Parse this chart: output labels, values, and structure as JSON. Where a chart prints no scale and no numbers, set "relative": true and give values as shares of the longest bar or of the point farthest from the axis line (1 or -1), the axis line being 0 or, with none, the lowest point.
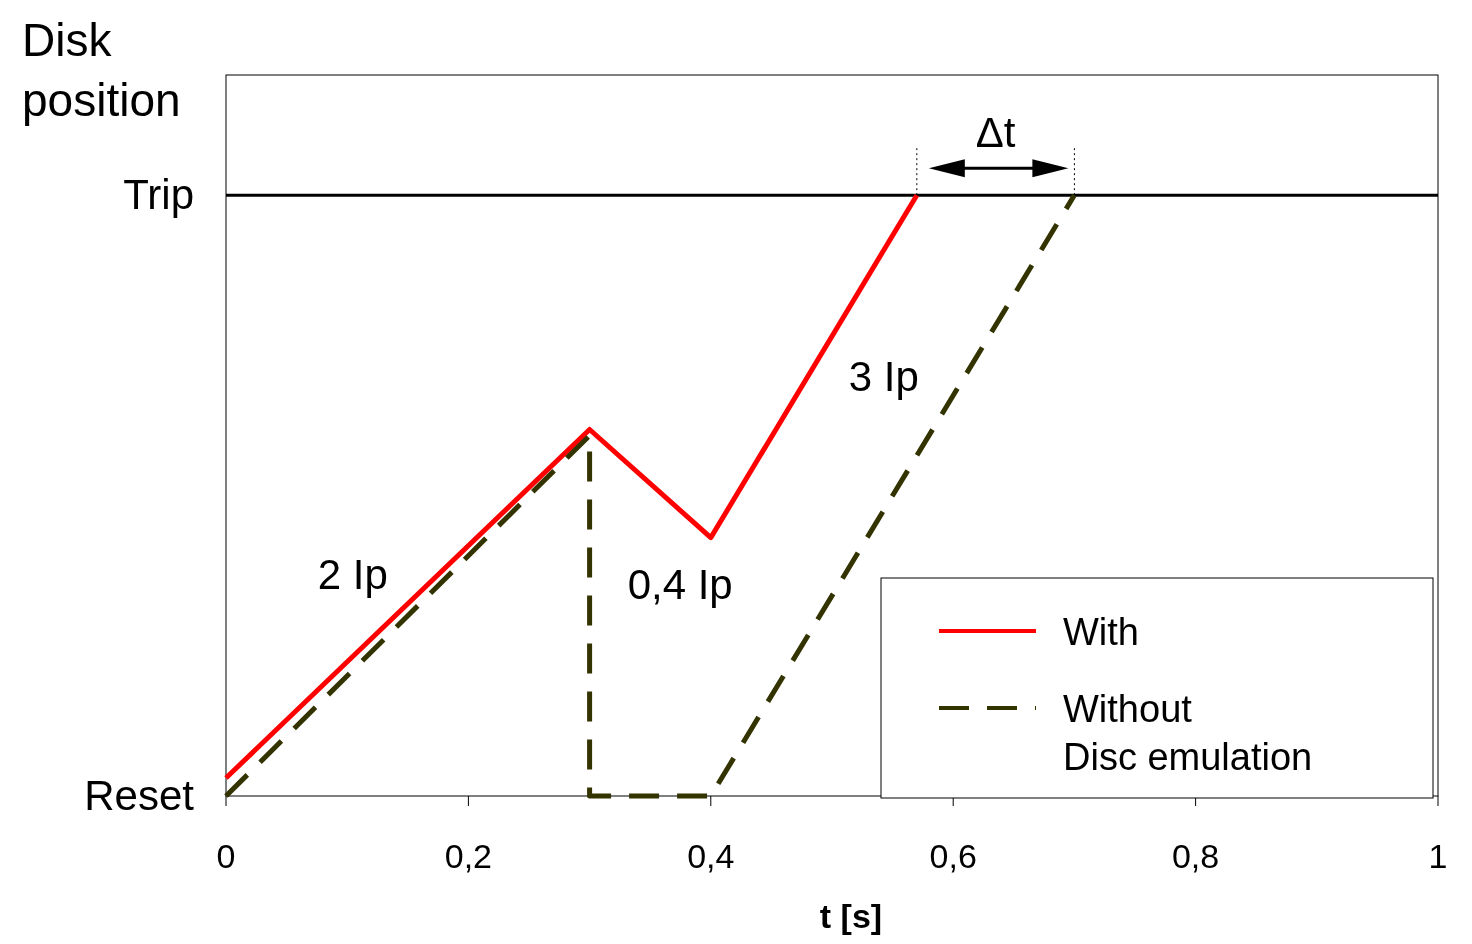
{
  "chart_data": {
    "type": "line",
    "xlabel": "t [s]",
    "ylabel": "Disk position",
    "xlim": [
      0,
      1
    ],
    "relative": true,
    "xticks": [
      0,
      {
        "value": 0.2,
        "label": "0,2"
      },
      {
        "value": 0.4,
        "label": "0,4"
      },
      {
        "value": 0.6,
        "label": "0,6"
      },
      {
        "value": 0.8,
        "label": "0,8"
      },
      1
    ],
    "series": [
      {
        "name": "With",
        "color": "#ff0000",
        "line_style": "solid",
        "x": [
          0,
          0.3,
          0.4,
          0.57
        ],
        "values": [
          0.03,
          0.61,
          0.43,
          1
        ]
      },
      {
        "name": "Without\nDisc emulation",
        "color": "#333300",
        "line_style": "dashed",
        "x": [
          0,
          0.3,
          0.3,
          0.4,
          0.7
        ],
        "values": [
          0,
          0.6,
          0,
          0,
          1
        ]
      }
    ],
    "ref_lines": [
      {
        "axis": "y",
        "value": 1,
        "label": "Trip",
        "color": "#000000"
      }
    ],
    "annotations": [
      "2 Ip",
      "0,4 Ip",
      "3 Ip",
      "Δt",
      "Reset"
    ],
    "legend": "bottom right",
    "marker": "none"
  }
}
